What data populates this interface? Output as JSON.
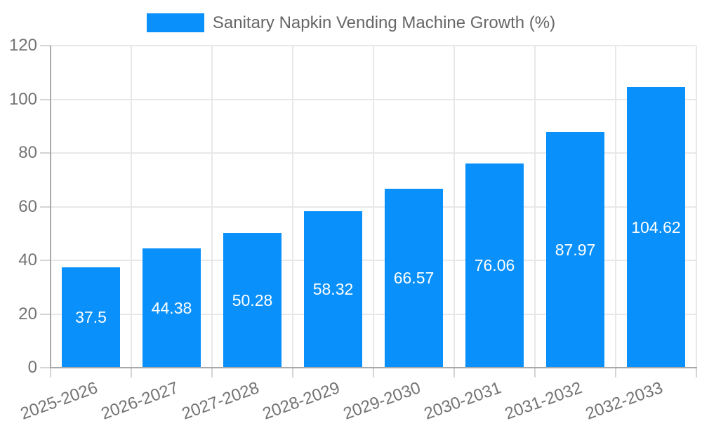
{
  "chart": {
    "background": "#ffffff",
    "legend": {
      "label": "Sanitary Napkin Vending Machine Growth (%)",
      "swatch_color": "#0990FB",
      "text_color": "#666666",
      "position": "top"
    },
    "colors": {
      "bar": "#0990FB",
      "gridline": "#E8E8E8",
      "tick_mark": "#D4D4D4",
      "axis_line": "#A9A9A9",
      "tick_text": "#737373",
      "value_label_text": "#FFFFFF"
    }
  },
  "chart_data": {
    "type": "bar",
    "title": "Sanitary Napkin Vending Machine Growth (%)",
    "categories": [
      "2025-2026",
      "2026-2027",
      "2027-2028",
      "2028-2029",
      "2029-2030",
      "2030-2031",
      "2031-2032",
      "2032-2033"
    ],
    "values": [
      37.5,
      44.38,
      50.28,
      58.32,
      66.57,
      76.06,
      87.97,
      104.62
    ],
    "value_labels": [
      "37.5",
      "44.38",
      "50.28",
      "58.32",
      "66.57",
      "76.06",
      "87.97",
      "104.62"
    ],
    "value_labels_position": "inside-center",
    "xlabel": "",
    "ylabel": "",
    "ylim": [
      0,
      120
    ],
    "ytick_step": 20,
    "yticks": [
      0,
      20,
      40,
      60,
      80,
      100,
      120
    ],
    "grid": true,
    "legend_position": "top",
    "x_tick_rotation_deg": -20
  }
}
